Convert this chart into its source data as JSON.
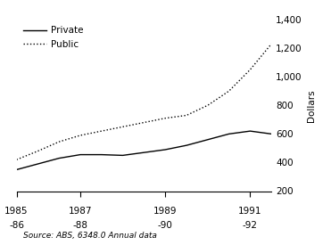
{
  "years": [
    1985.5,
    1986,
    1986.5,
    1987,
    1987.5,
    1988,
    1988.5,
    1989,
    1989.5,
    1990,
    1990.5,
    1991,
    1991.5
  ],
  "private": [
    350,
    390,
    430,
    455,
    455,
    450,
    470,
    490,
    520,
    560,
    600,
    620,
    600
  ],
  "public": [
    420,
    480,
    545,
    590,
    620,
    650,
    680,
    710,
    730,
    800,
    900,
    1050,
    1230
  ],
  "x_ticks": [
    1985.5,
    1987,
    1989,
    1991
  ],
  "x_tick_labels_top": [
    "1985",
    "1987",
    "1989",
    "1991"
  ],
  "x_tick_labels_bot": [
    "-86",
    "-88",
    "-90",
    "-92"
  ],
  "y_ticks": [
    200,
    400,
    600,
    800,
    1000,
    1200,
    1400
  ],
  "ylim": [
    200,
    1400
  ],
  "xlim": [
    1985.5,
    1991.5
  ],
  "ylabel": "Dollars",
  "legend_private": "Private",
  "legend_public": "Public",
  "source_text": "Source: ABS, 6348.0 Annual data",
  "line_color": "#000000",
  "bg_color": "#ffffff"
}
